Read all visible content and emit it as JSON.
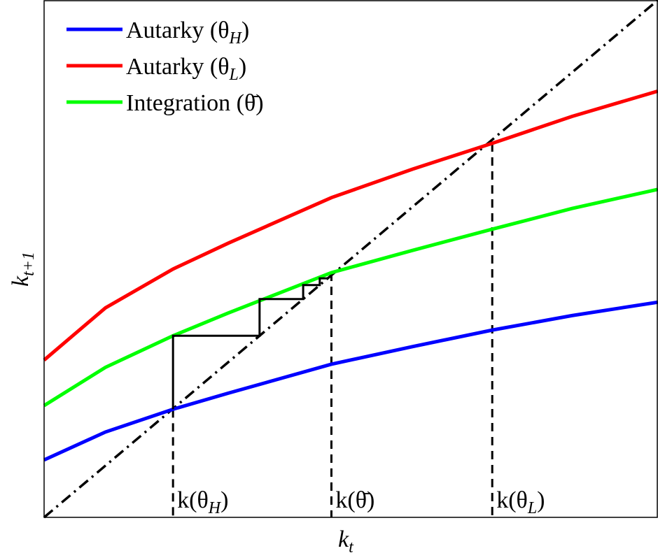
{
  "chart_data": {
    "type": "line",
    "x_label": {
      "text": "k",
      "sub": "t"
    },
    "y_label": {
      "text": "k",
      "sub": "t+1"
    },
    "xlim": [
      0,
      100
    ],
    "ylim": [
      0,
      100
    ],
    "x": [
      0,
      10,
      21,
      30,
      46.8,
      60,
      73,
      86,
      100
    ],
    "series": [
      {
        "name": "Autarky (θ",
        "name_sub": "H",
        "name_suffix": ")",
        "color": "#0000ff",
        "values": [
          11.1,
          16.5,
          20.9,
          24.0,
          29.6,
          33.0,
          36.2,
          39.0,
          41.6
        ]
      },
      {
        "name": "Autarky (θ",
        "name_sub": "L",
        "name_suffix": ")",
        "color": "#ff0000",
        "values": [
          30.4,
          40.5,
          48.0,
          53.0,
          61.8,
          67.3,
          72.3,
          77.5,
          82.4
        ]
      },
      {
        "name": "Integration (θ̄)",
        "color": "#00ff00",
        "values": [
          21.6,
          29.0,
          35.1,
          39.5,
          47.3,
          51.6,
          55.7,
          59.7,
          63.4
        ]
      }
    ],
    "reference_line": {
      "x": [
        0,
        100
      ],
      "y": [
        0,
        100
      ]
    },
    "cobweb": {
      "x": [
        21,
        21,
        35.1,
        35.1,
        42.2,
        42.2,
        44.9,
        44.9,
        46.2
      ],
      "y": [
        20.9,
        35.1,
        35.1,
        42.2,
        42.2,
        44.9,
        44.9,
        46.2,
        46.2
      ]
    },
    "annotations": [
      {
        "x": 21,
        "y": 20.9,
        "text": "k(θ",
        "sub": "H",
        "suffix": ")"
      },
      {
        "x": 46.8,
        "y": 47.3,
        "text": "k(θ̄)"
      },
      {
        "x": 73,
        "y": 72.3,
        "text": "k(θ",
        "sub": "L",
        "suffix": ")"
      }
    ]
  }
}
